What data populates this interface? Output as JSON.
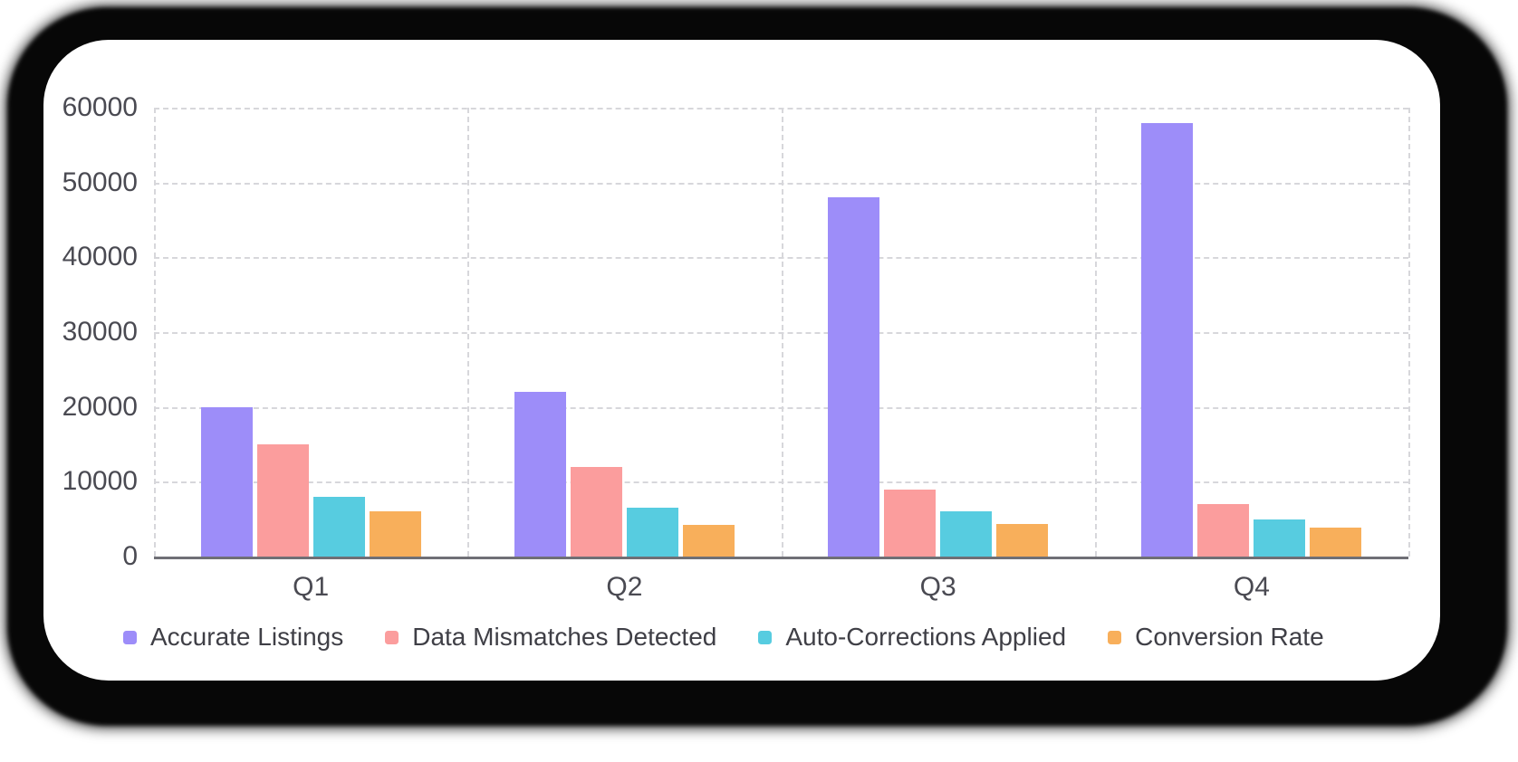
{
  "page": {
    "background_color": "#ffffff",
    "card_color": "#ffffff",
    "shadow_color": "#070707",
    "grid_color": "#d7d7db",
    "axis_color": "#6f6f76",
    "tick_text_color": "#4a4a52",
    "legend_text_color": "#3f3f46"
  },
  "chart_data": {
    "type": "bar",
    "title": "",
    "xlabel": "",
    "ylabel": "",
    "categories": [
      "Q1",
      "Q2",
      "Q3",
      "Q4"
    ],
    "series": [
      {
        "name": "Accurate Listings",
        "color": "#9d8df9",
        "values": [
          20000,
          22000,
          48000,
          58000
        ]
      },
      {
        "name": "Data Mismatches Detected",
        "color": "#fb9d9d",
        "values": [
          15000,
          12000,
          9000,
          7000
        ]
      },
      {
        "name": "Auto-Corrections Applied",
        "color": "#57cce0",
        "values": [
          8000,
          6500,
          6000,
          5000
        ]
      },
      {
        "name": "Conversion Rate",
        "color": "#f8af5b",
        "values": [
          6000,
          4200,
          4400,
          3900
        ]
      }
    ],
    "ylim": [
      0,
      60000
    ],
    "ytick_step": 10000,
    "ytick_labels": [
      "0",
      "10000",
      "20000",
      "30000",
      "40000",
      "50000",
      "60000"
    ],
    "grid": true,
    "grid_style": "dashed",
    "legend_position": "bottom"
  }
}
